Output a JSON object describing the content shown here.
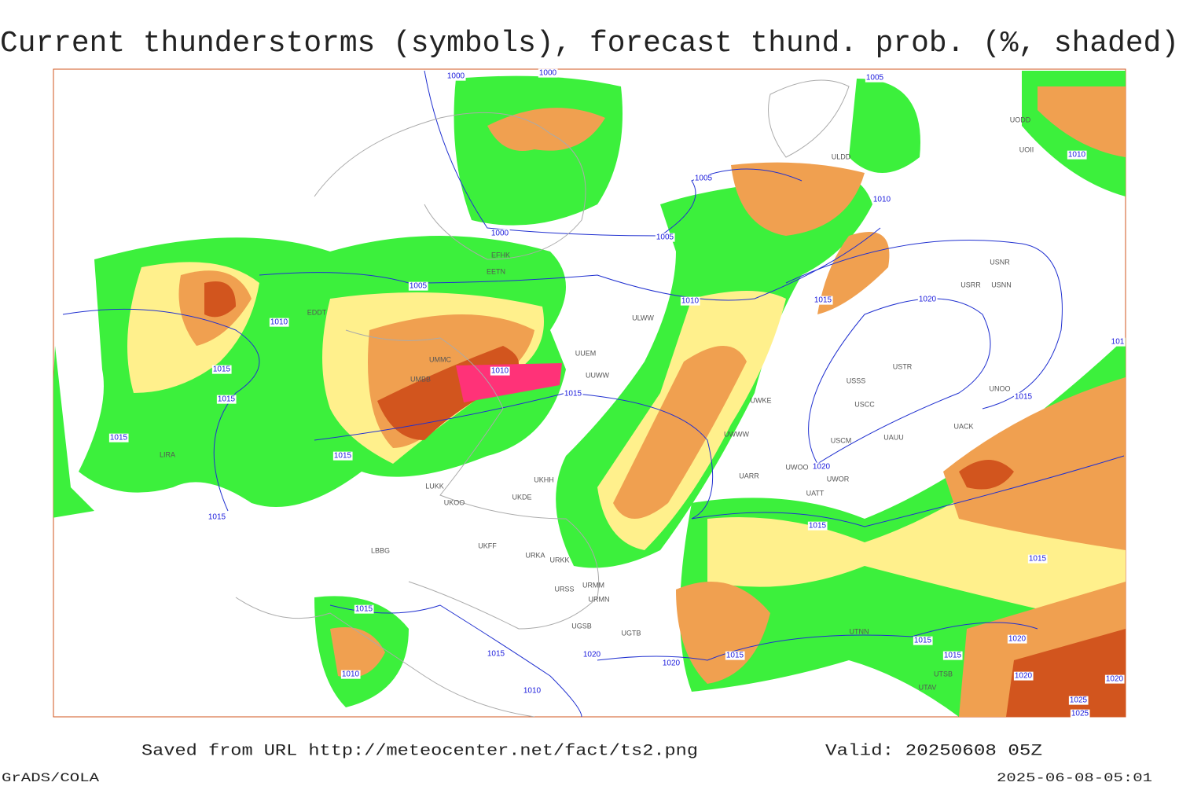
{
  "header": {
    "title": "Current thunderstorms (symbols), forecast thund. prob. (%, shaded)"
  },
  "map": {
    "isobar_labels": [
      "1000",
      "1000",
      "1005",
      "1000",
      "1005",
      "1005",
      "1010",
      "1010",
      "1005",
      "1010",
      "1015",
      "1015",
      "1015",
      "1010",
      "1015",
      "1015",
      "1015",
      "1015",
      "1020",
      "1010",
      "1015",
      "1020",
      "1015",
      "1015",
      "1015",
      "1015",
      "1010",
      "1010",
      "1020",
      "1020",
      "1015",
      "1015",
      "1015",
      "1020",
      "1020",
      "1020",
      "1025",
      "1025",
      "101"
    ],
    "station_labels": [
      "ULWW",
      "UUEM",
      "UUWW",
      "USSS",
      "USTR",
      "USCC",
      "UWKE",
      "UWWW",
      "USCM",
      "UAUU",
      "UACK",
      "UNOO",
      "UARR",
      "UWOO",
      "UWOR",
      "UATT",
      "UKHH",
      "UKOO",
      "LUKK",
      "UKDE",
      "UKFF",
      "URKA",
      "URKK",
      "URSS",
      "URMM",
      "URMN",
      "UGSB",
      "UGTB",
      "UTNN",
      "UTSB",
      "UTAV",
      "LBBG",
      "LIRA",
      "UMBB",
      "EFHK",
      "EETN",
      "ULDD",
      "UODD",
      "UOII",
      "USRR",
      "USNN",
      "USNR",
      "UMMC",
      "EDDT"
    ]
  },
  "footer": {
    "source": "Saved from URL http://meteocenter.net/fact/ts2.png",
    "valid": "Valid: 20250608 05Z",
    "software": "GrADS/COLA",
    "timestamp": "2025-06-08-05:01"
  }
}
